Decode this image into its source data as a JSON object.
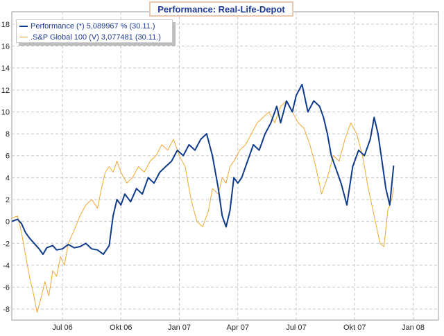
{
  "chart_data": {
    "type": "line",
    "title": "Performance: Real-Life-Depot",
    "xlabel": "",
    "ylabel": "",
    "ylim": [
      -9,
      18.5
    ],
    "y_ticks": [
      18,
      16,
      14,
      12,
      10,
      8,
      6,
      4,
      2,
      0,
      -2,
      -4,
      -6,
      -8
    ],
    "x_ticks": [
      "Jul 06",
      "Okt 06",
      "Jan 07",
      "Apr 07",
      "Jul 07",
      "Okt 07",
      "Jan 08"
    ],
    "x_range_months": [
      -2.6,
      19.3
    ],
    "grid": true,
    "legend_position": "top-left",
    "series": [
      {
        "name": "Performance (*) 5,089967 % (30.11.)",
        "color": "#0e3a8c",
        "x": [
          -2.6,
          -2.3,
          -2.1,
          -1.9,
          -1.7,
          -1.5,
          -1.2,
          -1.0,
          -0.8,
          -0.5,
          -0.3,
          0.0,
          0.3,
          0.6,
          0.9,
          1.2,
          1.5,
          1.8,
          2.1,
          2.4,
          2.6,
          2.8,
          3.0,
          3.2,
          3.5,
          3.8,
          4.1,
          4.4,
          4.7,
          5.0,
          5.3,
          5.6,
          5.9,
          6.2,
          6.5,
          6.8,
          7.1,
          7.4,
          7.7,
          8.0,
          8.2,
          8.4,
          8.6,
          8.8,
          9.0,
          9.2,
          9.5,
          9.8,
          10.1,
          10.4,
          10.7,
          11.0,
          11.2,
          11.5,
          11.8,
          12.0,
          12.3,
          12.6,
          12.9,
          13.2,
          13.4,
          13.6,
          13.8,
          14.0,
          14.3,
          14.6,
          14.9,
          15.2,
          15.5,
          15.8,
          16.0,
          16.2,
          16.4,
          16.6,
          16.8,
          17.0
        ],
        "y": [
          0.0,
          0.2,
          -0.2,
          -1.0,
          -1.5,
          -1.9,
          -2.5,
          -3.0,
          -2.4,
          -2.2,
          -2.6,
          -2.5,
          -2.1,
          -2.4,
          -2.3,
          -2.0,
          -2.5,
          -2.6,
          -3.0,
          -2.2,
          0.5,
          2.0,
          1.5,
          2.5,
          1.8,
          3.0,
          2.5,
          4.0,
          3.5,
          4.5,
          5.0,
          5.5,
          6.5,
          6.0,
          7.0,
          6.5,
          7.5,
          8.0,
          6.0,
          3.0,
          0.5,
          -0.5,
          1.0,
          4.0,
          3.5,
          4.0,
          5.5,
          7.0,
          6.5,
          8.0,
          9.0,
          10.5,
          9.0,
          11.0,
          10.0,
          11.5,
          12.5,
          10.0,
          11.0,
          10.5,
          9.5,
          8.0,
          6.0,
          5.0,
          3.5,
          1.5,
          5.0,
          6.5,
          6.0,
          7.5,
          9.5,
          8.0,
          5.5,
          3.0,
          1.5,
          5.1
        ]
      },
      {
        "name": ".S&P Global 100 (V) 3,077481 (30.11.)",
        "color": "#f0a830",
        "x": [
          -2.6,
          -2.3,
          -2.1,
          -1.9,
          -1.7,
          -1.5,
          -1.3,
          -1.1,
          -0.9,
          -0.7,
          -0.5,
          -0.3,
          -0.1,
          0.1,
          0.3,
          0.6,
          0.9,
          1.2,
          1.5,
          1.8,
          2.0,
          2.2,
          2.4,
          2.6,
          2.8,
          3.0,
          3.3,
          3.6,
          3.9,
          4.2,
          4.5,
          4.8,
          5.1,
          5.4,
          5.7,
          6.0,
          6.3,
          6.6,
          6.9,
          7.2,
          7.5,
          7.7,
          8.0,
          8.2,
          8.4,
          8.6,
          8.8,
          9.1,
          9.4,
          9.7,
          10.0,
          10.3,
          10.6,
          10.9,
          11.2,
          11.5,
          11.8,
          12.1,
          12.4,
          12.7,
          13.0,
          13.3,
          13.6,
          13.9,
          14.2,
          14.5,
          14.8,
          15.1,
          15.4,
          15.7,
          16.0,
          16.3,
          16.5,
          16.7,
          16.9,
          17.0
        ],
        "y": [
          0.3,
          0.5,
          -1.0,
          -3.0,
          -5.0,
          -6.5,
          -8.3,
          -7.0,
          -5.5,
          -6.8,
          -4.5,
          -5.0,
          -3.2,
          -4.0,
          -2.0,
          -0.8,
          0.5,
          1.5,
          2.0,
          1.2,
          3.0,
          4.5,
          5.0,
          4.5,
          5.5,
          4.5,
          3.5,
          4.0,
          5.0,
          4.5,
          5.5,
          6.0,
          7.0,
          6.5,
          7.5,
          6.0,
          5.0,
          2.0,
          0.0,
          -0.5,
          1.0,
          3.0,
          2.5,
          4.0,
          3.5,
          5.0,
          5.5,
          6.5,
          7.0,
          8.0,
          9.0,
          9.5,
          10.0,
          9.0,
          10.5,
          11.0,
          10.0,
          9.0,
          8.5,
          7.0,
          5.0,
          2.5,
          4.0,
          6.0,
          5.5,
          7.5,
          9.0,
          8.0,
          6.0,
          3.0,
          0.5,
          -2.0,
          -2.3,
          1.0,
          2.0,
          3.1
        ]
      }
    ]
  }
}
